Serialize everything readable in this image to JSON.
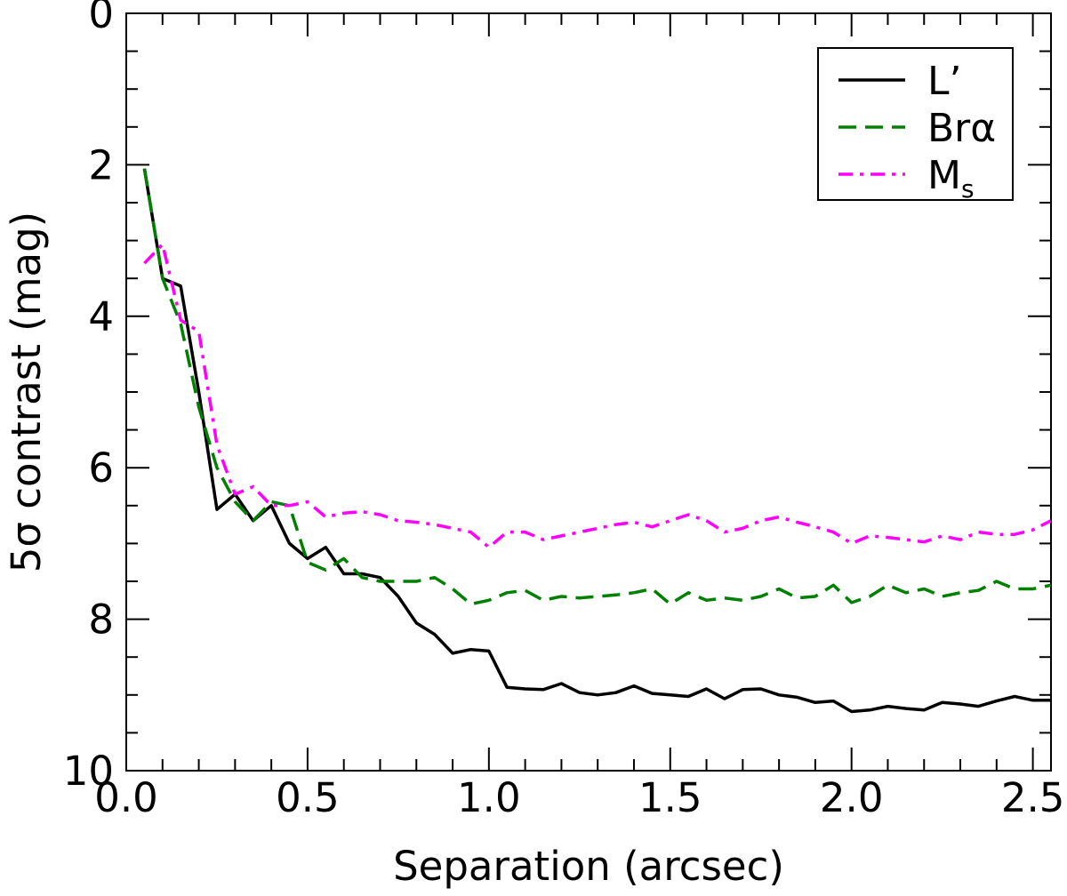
{
  "chart_data": {
    "type": "line",
    "xlabel": "Separation (arcsec)",
    "ylabel": "5σ contrast (mag)",
    "xlim": [
      0.0,
      2.55
    ],
    "ylim": [
      0,
      10
    ],
    "y_inverted": true,
    "grid": false,
    "legend_position": "top-right",
    "x_ticks": [
      0.0,
      0.5,
      1.0,
      1.5,
      2.0,
      2.5
    ],
    "x_tick_labels": [
      "0.0",
      "0.5",
      "1.0",
      "1.5",
      "2.0",
      "2.5"
    ],
    "y_ticks": [
      0,
      2,
      4,
      6,
      8,
      10
    ],
    "y_tick_labels": [
      "0",
      "2",
      "4",
      "6",
      "8",
      "10"
    ],
    "series": [
      {
        "name": "L’",
        "name_main": "L’",
        "name_sub": "",
        "color": "#000000",
        "dash": "solid",
        "x": [
          0.05,
          0.1,
          0.15,
          0.2,
          0.25,
          0.3,
          0.35,
          0.4,
          0.45,
          0.5,
          0.55,
          0.6,
          0.65,
          0.7,
          0.75,
          0.8,
          0.85,
          0.9,
          0.95,
          1.0,
          1.05,
          1.1,
          1.15,
          1.2,
          1.25,
          1.3,
          1.35,
          1.4,
          1.45,
          1.5,
          1.55,
          1.6,
          1.65,
          1.7,
          1.75,
          1.8,
          1.85,
          1.9,
          1.95,
          2.0,
          2.05,
          2.1,
          2.15,
          2.2,
          2.25,
          2.3,
          2.35,
          2.4,
          2.45,
          2.5,
          2.55
        ],
        "y": [
          2.05,
          3.5,
          3.6,
          5.0,
          6.55,
          6.35,
          6.7,
          6.5,
          7.0,
          7.2,
          7.05,
          7.4,
          7.4,
          7.45,
          7.7,
          8.05,
          8.2,
          8.45,
          8.4,
          8.42,
          8.9,
          8.92,
          8.93,
          8.85,
          8.97,
          9.0,
          8.97,
          8.88,
          8.98,
          9.0,
          9.02,
          8.92,
          9.05,
          8.93,
          8.92,
          9.0,
          9.03,
          9.1,
          9.08,
          9.22,
          9.2,
          9.15,
          9.18,
          9.2,
          9.1,
          9.12,
          9.15,
          9.08,
          9.02,
          9.07,
          9.07
        ]
      },
      {
        "name": "Brα",
        "name_main": "Brα",
        "name_sub": "",
        "color": "#008000",
        "dash": "dashed",
        "x": [
          0.05,
          0.1,
          0.15,
          0.2,
          0.25,
          0.3,
          0.35,
          0.4,
          0.45,
          0.5,
          0.55,
          0.6,
          0.65,
          0.7,
          0.75,
          0.8,
          0.85,
          0.9,
          0.95,
          1.0,
          1.05,
          1.1,
          1.15,
          1.2,
          1.25,
          1.3,
          1.35,
          1.4,
          1.45,
          1.5,
          1.55,
          1.6,
          1.65,
          1.7,
          1.75,
          1.8,
          1.85,
          1.9,
          1.95,
          2.0,
          2.05,
          2.1,
          2.15,
          2.2,
          2.25,
          2.3,
          2.35,
          2.4,
          2.45,
          2.5,
          2.55
        ],
        "y": [
          2.05,
          3.5,
          4.1,
          5.2,
          6.0,
          6.45,
          6.7,
          6.45,
          6.5,
          7.25,
          7.35,
          7.2,
          7.45,
          7.5,
          7.5,
          7.5,
          7.45,
          7.6,
          7.8,
          7.75,
          7.65,
          7.62,
          7.75,
          7.7,
          7.72,
          7.7,
          7.68,
          7.65,
          7.6,
          7.8,
          7.65,
          7.75,
          7.72,
          7.75,
          7.7,
          7.6,
          7.72,
          7.7,
          7.55,
          7.78,
          7.7,
          7.55,
          7.65,
          7.6,
          7.7,
          7.65,
          7.62,
          7.5,
          7.6,
          7.6,
          7.55
        ]
      },
      {
        "name": "Ms",
        "name_main": "M",
        "name_sub": "s",
        "color": "#ff00ff",
        "dash": "dashdot",
        "x": [
          0.05,
          0.1,
          0.15,
          0.2,
          0.25,
          0.3,
          0.35,
          0.4,
          0.45,
          0.5,
          0.55,
          0.6,
          0.65,
          0.7,
          0.75,
          0.8,
          0.85,
          0.9,
          0.95,
          1.0,
          1.05,
          1.1,
          1.15,
          1.2,
          1.25,
          1.3,
          1.35,
          1.4,
          1.45,
          1.5,
          1.55,
          1.6,
          1.65,
          1.7,
          1.75,
          1.8,
          1.85,
          1.9,
          1.95,
          2.0,
          2.05,
          2.1,
          2.15,
          2.2,
          2.25,
          2.3,
          2.35,
          2.4,
          2.45,
          2.5,
          2.55
        ],
        "y": [
          3.3,
          3.05,
          4.05,
          4.2,
          5.7,
          6.35,
          6.25,
          6.5,
          6.5,
          6.45,
          6.65,
          6.6,
          6.58,
          6.62,
          6.7,
          6.72,
          6.75,
          6.8,
          6.85,
          7.05,
          6.85,
          6.85,
          6.95,
          6.9,
          6.85,
          6.8,
          6.75,
          6.72,
          6.78,
          6.7,
          6.62,
          6.7,
          6.85,
          6.8,
          6.7,
          6.65,
          6.72,
          6.78,
          6.85,
          7.0,
          6.9,
          6.92,
          6.95,
          6.98,
          6.9,
          6.95,
          6.85,
          6.88,
          6.88,
          6.82,
          6.7
        ]
      }
    ]
  }
}
